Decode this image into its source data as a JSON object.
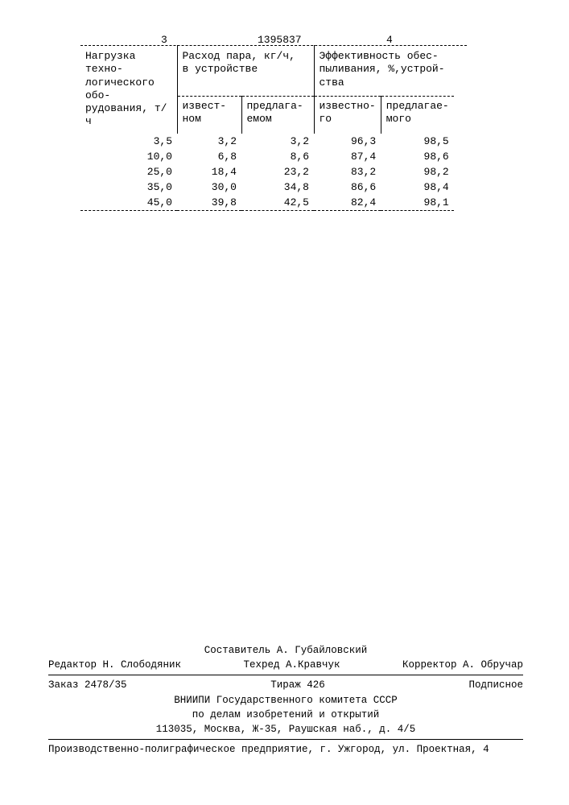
{
  "header": {
    "page_left": "3",
    "doc_number": "1395837",
    "page_right": "4"
  },
  "table": {
    "group_headers": {
      "c0": "Нагрузка техно-\nлогического обо-\nрудования, т/ч",
      "c1": "Расход пара, кг/ч,\nв устройстве",
      "c2": "Эффективность обес-\nпыливания, %,устрой-\nства"
    },
    "sub_headers": {
      "s1": "извест-\nном",
      "s2": "предлага-\nемом",
      "s3": "известно-\nго",
      "s4": "предлагае-\nмого"
    },
    "rows": [
      [
        "3,5",
        "3,2",
        "3,2",
        "96,3",
        "98,5"
      ],
      [
        "10,0",
        "6,8",
        "8,6",
        "87,4",
        "98,6"
      ],
      [
        "25,0",
        "18,4",
        "23,2",
        "83,2",
        "98,2"
      ],
      [
        "35,0",
        "30,0",
        "34,8",
        "86,6",
        "98,4"
      ],
      [
        "45,0",
        "39,8",
        "42,5",
        "82,4",
        "98,1"
      ]
    ]
  },
  "footer": {
    "compiler": "Составитель А. Губайловский",
    "editor_label": "Редактор",
    "editor_name": "Н. Слободяник",
    "tehred_label": "Техред",
    "tehred_name": "А.Кравчук",
    "corrector_label": "Корректор",
    "corrector_name": "А. Обручар",
    "order": "Заказ 2478/35",
    "tirazh": "Тираж 426",
    "podpisnoe": "Подписное",
    "org1": "ВНИИПИ Государственного комитета СССР",
    "org2": "по делам изобретений и открытий",
    "addr": "113035, Москва, Ж-35, Раушская наб., д. 4/5",
    "prod": "Производственно-полиграфическое предприятие, г. Ужгород, ул. Проектная, 4"
  }
}
